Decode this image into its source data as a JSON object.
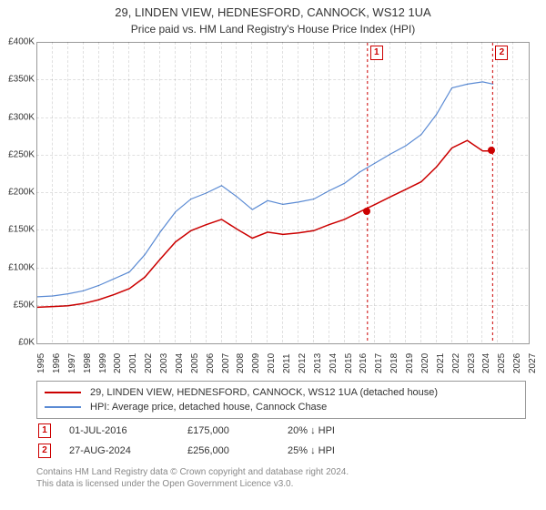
{
  "title": {
    "line1": "29, LINDEN VIEW, HEDNESFORD, CANNOCK, WS12 1UA",
    "line2": "Price paid vs. HM Land Registry's House Price Index (HPI)"
  },
  "chart": {
    "type": "line",
    "background_color": "#ffffff",
    "grid_color": "#e2e2e2",
    "axis_color": "#999999",
    "tick_fontsize": 10,
    "y": {
      "min": 0,
      "max": 400000,
      "step": 50000,
      "labels": [
        "£0K",
        "£50K",
        "£100K",
        "£150K",
        "£200K",
        "£250K",
        "£300K",
        "£350K",
        "£400K"
      ]
    },
    "x": {
      "min": 1995,
      "max": 2027,
      "labels": [
        "1995",
        "1996",
        "1997",
        "1998",
        "1999",
        "2000",
        "2001",
        "2002",
        "2003",
        "2004",
        "2005",
        "2006",
        "2007",
        "2008",
        "2009",
        "2010",
        "2011",
        "2012",
        "2013",
        "2014",
        "2015",
        "2016",
        "2017",
        "2018",
        "2019",
        "2020",
        "2021",
        "2022",
        "2023",
        "2024",
        "2025",
        "2026",
        "2027"
      ]
    },
    "series": [
      {
        "id": "price_paid",
        "label": "29, LINDEN VIEW, HEDNESFORD, CANNOCK, WS12 1UA (detached house)",
        "color": "#cc0000",
        "line_width": 1.5,
        "points": [
          [
            1995,
            48000
          ],
          [
            1996,
            49000
          ],
          [
            1997,
            50000
          ],
          [
            1998,
            53000
          ],
          [
            1999,
            58000
          ],
          [
            2000,
            65000
          ],
          [
            2001,
            73000
          ],
          [
            2002,
            88000
          ],
          [
            2003,
            112000
          ],
          [
            2004,
            135000
          ],
          [
            2005,
            150000
          ],
          [
            2006,
            158000
          ],
          [
            2007,
            165000
          ],
          [
            2008,
            152000
          ],
          [
            2009,
            140000
          ],
          [
            2010,
            148000
          ],
          [
            2011,
            145000
          ],
          [
            2012,
            147000
          ],
          [
            2013,
            150000
          ],
          [
            2014,
            158000
          ],
          [
            2015,
            165000
          ],
          [
            2016,
            175000
          ],
          [
            2017,
            185000
          ],
          [
            2018,
            195000
          ],
          [
            2019,
            205000
          ],
          [
            2020,
            215000
          ],
          [
            2021,
            235000
          ],
          [
            2022,
            260000
          ],
          [
            2023,
            270000
          ],
          [
            2024,
            256000
          ],
          [
            2024.7,
            256000
          ]
        ]
      },
      {
        "id": "hpi",
        "label": "HPI: Average price, detached house, Cannock Chase",
        "color": "#5b8bd4",
        "line_width": 1.2,
        "points": [
          [
            1995,
            62000
          ],
          [
            1996,
            63000
          ],
          [
            1997,
            66000
          ],
          [
            1998,
            70000
          ],
          [
            1999,
            77000
          ],
          [
            2000,
            86000
          ],
          [
            2001,
            95000
          ],
          [
            2002,
            118000
          ],
          [
            2003,
            148000
          ],
          [
            2004,
            175000
          ],
          [
            2005,
            192000
          ],
          [
            2006,
            200000
          ],
          [
            2007,
            210000
          ],
          [
            2008,
            195000
          ],
          [
            2009,
            178000
          ],
          [
            2010,
            190000
          ],
          [
            2011,
            185000
          ],
          [
            2012,
            188000
          ],
          [
            2013,
            192000
          ],
          [
            2014,
            203000
          ],
          [
            2015,
            213000
          ],
          [
            2016,
            228000
          ],
          [
            2017,
            240000
          ],
          [
            2018,
            252000
          ],
          [
            2019,
            263000
          ],
          [
            2020,
            278000
          ],
          [
            2021,
            305000
          ],
          [
            2022,
            340000
          ],
          [
            2023,
            345000
          ],
          [
            2024,
            348000
          ],
          [
            2024.7,
            345000
          ]
        ]
      }
    ],
    "markers": [
      {
        "id": 1,
        "label": "1",
        "x": 2016.5,
        "price": 175000,
        "box_color": "#cc0000",
        "dot_color": "#cc0000"
      },
      {
        "id": 2,
        "label": "2",
        "x": 2024.65,
        "price": 256000,
        "box_color": "#cc0000",
        "dot_color": "#cc0000"
      }
    ]
  },
  "legend": {
    "border_color": "#999999"
  },
  "transactions": [
    {
      "label": "1",
      "box_color": "#cc0000",
      "date": "01-JUL-2016",
      "price": "£175,000",
      "pct": "20% ↓ HPI"
    },
    {
      "label": "2",
      "box_color": "#cc0000",
      "date": "27-AUG-2024",
      "price": "£256,000",
      "pct": "25% ↓ HPI"
    }
  ],
  "attribution": {
    "line1": "Contains HM Land Registry data © Crown copyright and database right 2024.",
    "line2": "This data is licensed under the Open Government Licence v3.0."
  }
}
